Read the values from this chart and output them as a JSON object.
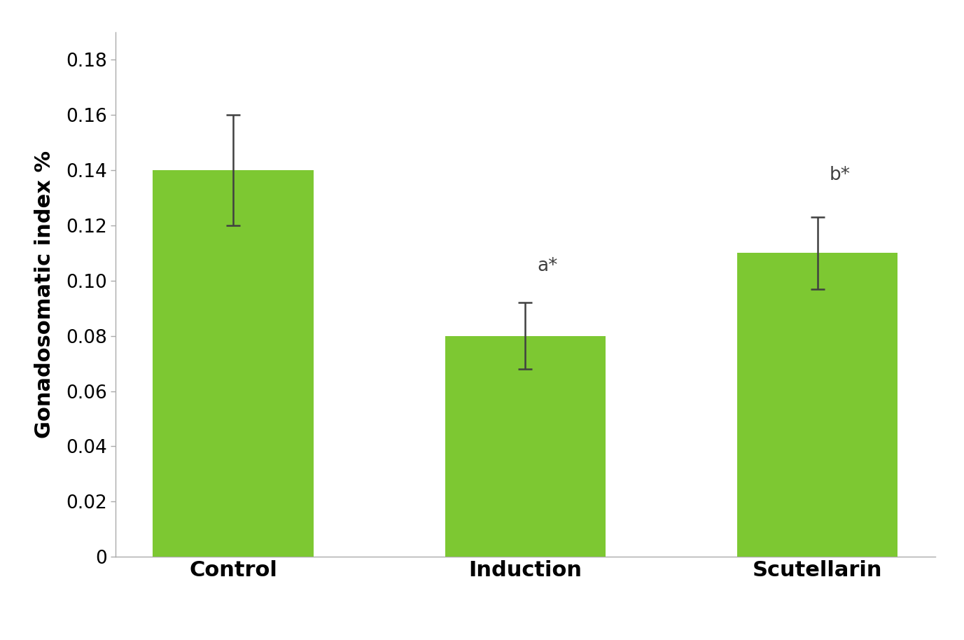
{
  "categories": [
    "Control",
    "Induction",
    "Scutellarin"
  ],
  "values": [
    0.14,
    0.08,
    0.11
  ],
  "errors": [
    0.02,
    0.012,
    0.013
  ],
  "bar_color": "#7DC832",
  "error_color": "#404040",
  "ylabel": "Gonadosomatic index %",
  "ylim": [
    0,
    0.19
  ],
  "yticks": [
    0,
    0.02,
    0.04,
    0.06,
    0.08,
    0.1,
    0.12,
    0.14,
    0.16,
    0.18
  ],
  "annotations": [
    "",
    "a*",
    "b*"
  ],
  "annotation_offsets": [
    0,
    0.01,
    0.012
  ],
  "background_color": "#ffffff",
  "bar_width": 0.55,
  "xlabel_fontsize": 22,
  "ylabel_fontsize": 22,
  "tick_fontsize": 19,
  "annotation_fontsize": 19,
  "annotation_color": "#404040",
  "spine_color": "#aaaaaa"
}
